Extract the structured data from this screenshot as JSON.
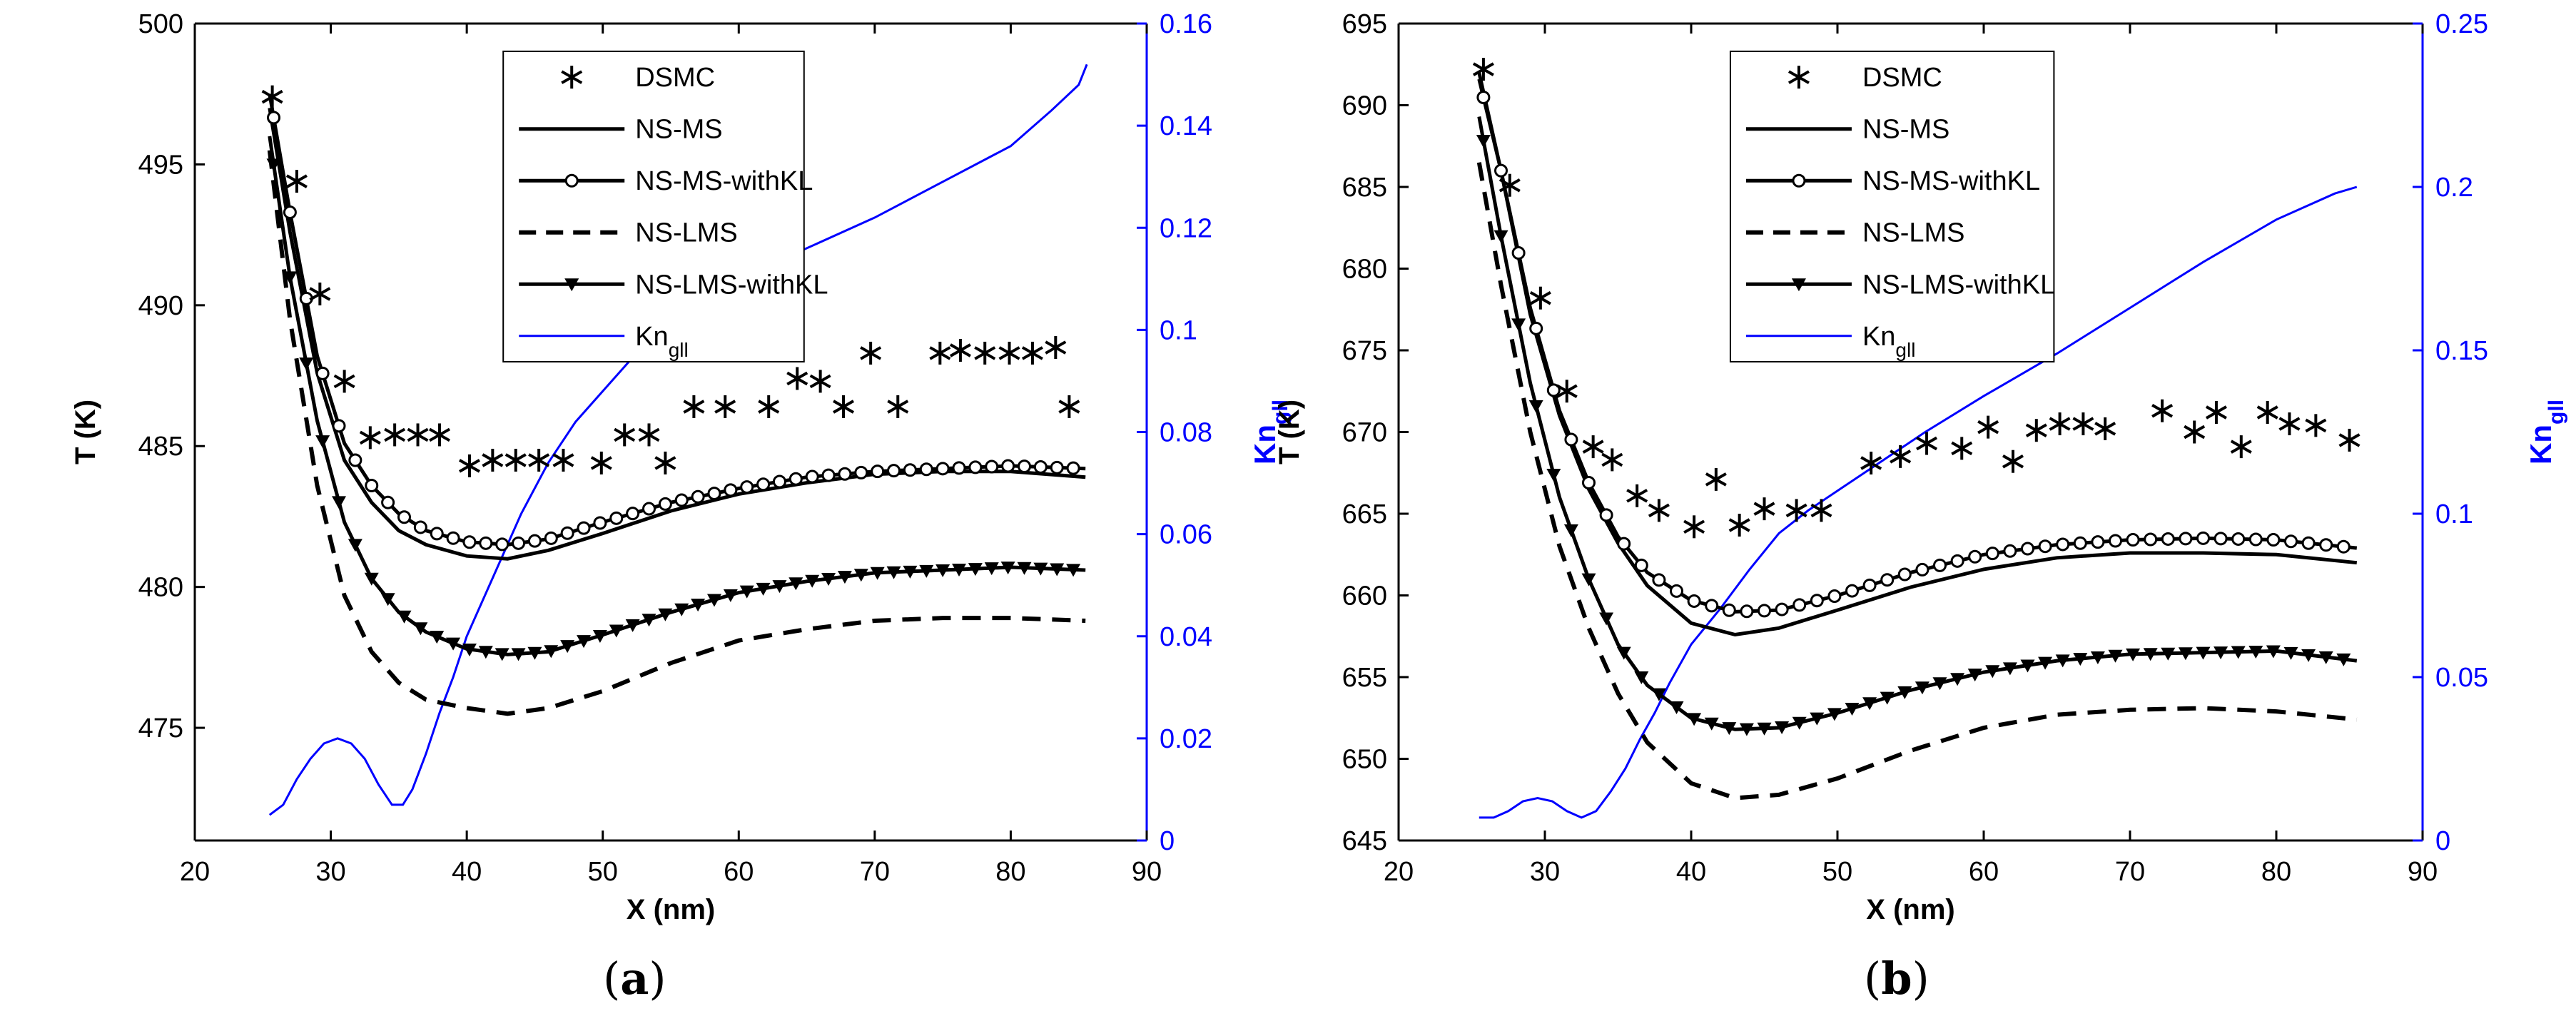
{
  "panels": [
    {
      "label_open": "(",
      "label_letter": "a",
      "label_close": ")"
    },
    {
      "label_open": "(",
      "label_letter": "b",
      "label_close": ")"
    }
  ],
  "colors": {
    "axis": "#000000",
    "secondary": "#0000ff",
    "series": "#000000"
  },
  "chart_data": [
    {
      "type": "line",
      "xlabel": "X (nm)",
      "ylabel": "T (K)",
      "y2label_main": "Kn",
      "y2label_sub": "gll",
      "xlim": [
        20,
        90
      ],
      "ylim": [
        471,
        500
      ],
      "y2lim": [
        0,
        0.16
      ],
      "xticks": [
        20,
        30,
        40,
        50,
        60,
        70,
        80,
        90
      ],
      "yticks": [
        475,
        480,
        485,
        490,
        495,
        500
      ],
      "y2ticks": [
        "0",
        "0.02",
        "0.04",
        "0.06",
        "0.08",
        "0.1",
        "0.12",
        "0.14",
        "0.16"
      ],
      "legend_position": "top-center",
      "legend": [
        {
          "name": "DSMC",
          "style": "asterisk"
        },
        {
          "name": "NS-MS",
          "style": "solid"
        },
        {
          "name": "NS-MS-withKL",
          "style": "solid-circle"
        },
        {
          "name": "NS-LMS",
          "style": "dashed"
        },
        {
          "name": "NS-LMS-withKL",
          "style": "solid-triangle"
        },
        {
          "name_main": "Kn",
          "name_sub": "gll",
          "style": "blue-line"
        }
      ],
      "series": [
        {
          "key": "dsmc",
          "x": [
            25.7,
            27.5,
            29.2,
            31.0,
            32.9,
            34.7,
            36.4,
            38.0,
            40.2,
            41.9,
            43.6,
            45.3,
            47.1,
            49.9,
            51.6,
            53.4,
            54.6,
            56.7,
            59.0,
            62.2,
            64.3,
            66.0,
            67.7,
            69.7,
            71.7,
            74.8,
            76.3,
            78.1,
            79.9,
            81.6,
            83.3,
            84.3
          ],
          "y": [
            497.4,
            494.4,
            490.4,
            487.3,
            485.3,
            485.4,
            485.4,
            485.4,
            484.3,
            484.5,
            484.5,
            484.5,
            484.5,
            484.4,
            485.4,
            485.4,
            484.4,
            486.4,
            486.4,
            486.4,
            487.4,
            487.3,
            486.4,
            488.3,
            486.4,
            488.3,
            488.4,
            488.3,
            488.3,
            488.3,
            488.5,
            486.4
          ]
        },
        {
          "key": "ns_ms",
          "x": [
            25.5,
            27,
            29,
            31,
            33,
            35,
            37,
            40,
            43,
            46,
            50,
            55,
            60,
            65,
            70,
            75,
            80,
            85.5
          ],
          "y": [
            497,
            492.6,
            487.6,
            484.5,
            483.0,
            482.0,
            481.5,
            481.1,
            481.0,
            481.3,
            481.9,
            482.7,
            483.3,
            483.7,
            484.0,
            484.1,
            484.1,
            483.9
          ]
        },
        {
          "key": "ns_ms_kl",
          "x": [
            25.5,
            27,
            29,
            31,
            33,
            35,
            37,
            40,
            43,
            46,
            50,
            55,
            60,
            65,
            70,
            75,
            80,
            85.5
          ],
          "y": [
            497.5,
            493.3,
            488.2,
            485.1,
            483.6,
            482.6,
            482.0,
            481.6,
            481.5,
            481.7,
            482.3,
            483.0,
            483.5,
            483.9,
            484.1,
            484.2,
            484.3,
            484.2
          ]
        },
        {
          "key": "ns_lms",
          "x": [
            25.5,
            27,
            29,
            31,
            33,
            35,
            37,
            40,
            43,
            46,
            50,
            55,
            60,
            65,
            70,
            75,
            80,
            85.5
          ],
          "y": [
            495.5,
            489.5,
            483.6,
            479.7,
            477.7,
            476.6,
            476.0,
            475.7,
            475.5,
            475.7,
            476.3,
            477.3,
            478.1,
            478.5,
            478.8,
            478.9,
            478.9,
            478.8
          ]
        },
        {
          "key": "ns_lms_kl",
          "x": [
            25.5,
            27,
            29,
            31,
            33,
            35,
            37,
            40,
            43,
            46,
            50,
            55,
            60,
            65,
            70,
            75,
            80,
            85.5
          ],
          "y": [
            496,
            491,
            485.9,
            482.3,
            480.3,
            479.1,
            478.4,
            477.8,
            477.6,
            477.7,
            478.3,
            479.1,
            479.8,
            480.2,
            480.5,
            480.6,
            480.7,
            480.6
          ]
        },
        {
          "key": "kn",
          "x": [
            25.5,
            26.5,
            27.5,
            28.5,
            29.5,
            30.5,
            31.5,
            32.5,
            33.5,
            34.5,
            35.3,
            36,
            37,
            38,
            39,
            40,
            42,
            44,
            46,
            48,
            50,
            53,
            56,
            60,
            65,
            70,
            75,
            80,
            83,
            85,
            85.6
          ],
          "y": [
            0.005,
            0.007,
            0.012,
            0.016,
            0.019,
            0.02,
            0.019,
            0.016,
            0.011,
            0.007,
            0.007,
            0.01,
            0.017,
            0.025,
            0.032,
            0.04,
            0.052,
            0.064,
            0.074,
            0.082,
            0.088,
            0.097,
            0.104,
            0.11,
            0.116,
            0.122,
            0.129,
            0.136,
            0.143,
            0.148,
            0.152
          ]
        }
      ]
    },
    {
      "type": "line",
      "xlabel": "X (nm)",
      "ylabel": "T (K)",
      "y2label_main": "Kn",
      "y2label_sub": "gll",
      "xlim": [
        20,
        90
      ],
      "ylim": [
        645,
        695
      ],
      "y2lim": [
        0,
        0.25
      ],
      "xticks": [
        20,
        30,
        40,
        50,
        60,
        70,
        80,
        90
      ],
      "yticks": [
        645,
        650,
        655,
        660,
        665,
        670,
        675,
        680,
        685,
        690,
        695
      ],
      "y2ticks": [
        "0",
        "0.05",
        "0.1",
        "0.15",
        "0.2",
        "0.25"
      ],
      "legend_position": "top-center",
      "legend": [
        {
          "name": "DSMC",
          "style": "asterisk"
        },
        {
          "name": "NS-MS",
          "style": "solid"
        },
        {
          "name": "NS-MS-withKL",
          "style": "solid-circle"
        },
        {
          "name": "NS-LMS",
          "style": "dashed"
        },
        {
          "name": "NS-LMS-withKL",
          "style": "solid-triangle"
        },
        {
          "name_main": "Kn",
          "name_sub": "gll",
          "style": "blue-line"
        }
      ],
      "series": [
        {
          "key": "dsmc",
          "x": [
            25.8,
            27.6,
            29.7,
            31.5,
            33.3,
            34.6,
            36.3,
            37.8,
            40.2,
            41.7,
            43.3,
            45.0,
            47.2,
            48.9,
            52.3,
            54.3,
            56.1,
            58.5,
            60.3,
            62.0,
            63.6,
            65.2,
            66.8,
            68.3,
            72.2,
            74.4,
            75.9,
            77.6,
            79.4,
            80.9,
            82.7,
            85.0
          ],
          "y": [
            692.2,
            685.1,
            678.2,
            672.5,
            669.1,
            668.3,
            666.1,
            665.2,
            664.2,
            667.1,
            664.3,
            665.3,
            665.2,
            665.2,
            668.1,
            668.5,
            669.3,
            669.0,
            670.3,
            668.2,
            670.1,
            670.5,
            670.5,
            670.2,
            671.3,
            670.0,
            671.2,
            669.1,
            671.2,
            670.5,
            670.4,
            669.5
          ]
        },
        {
          "key": "ns_ms",
          "x": [
            25.5,
            27,
            29,
            31,
            33,
            35,
            37,
            40,
            43,
            46,
            50,
            55,
            60,
            65,
            70,
            75,
            80,
            85.5
          ],
          "y": [
            692,
            686,
            677.2,
            671,
            666.5,
            663.2,
            660.6,
            658.3,
            657.6,
            658.0,
            659.1,
            660.5,
            661.6,
            662.3,
            662.6,
            662.6,
            662.5,
            662.0
          ]
        },
        {
          "key": "ns_ms_kl",
          "x": [
            25.5,
            27,
            29,
            31,
            33,
            35,
            37,
            40,
            43,
            46,
            50,
            55,
            60,
            65,
            70,
            75,
            80,
            85.5
          ],
          "y": [
            691.6,
            686,
            677.6,
            671.3,
            666.9,
            663.6,
            661.4,
            659.7,
            659.0,
            659.1,
            660.0,
            661.4,
            662.5,
            663.1,
            663.4,
            663.5,
            663.4,
            662.9
          ]
        },
        {
          "key": "ns_lms",
          "x": [
            25.5,
            27,
            29,
            31,
            33,
            35,
            37,
            40,
            43,
            46,
            50,
            55,
            60,
            65,
            70,
            75,
            80,
            85.5
          ],
          "y": [
            686.5,
            679.0,
            670.0,
            663.0,
            658.0,
            654.0,
            651.0,
            648.5,
            647.6,
            647.8,
            648.8,
            650.5,
            651.9,
            652.7,
            653.0,
            653.1,
            652.9,
            652.4
          ]
        },
        {
          "key": "ns_lms_kl",
          "x": [
            25.5,
            27,
            29,
            31,
            33,
            35,
            37,
            40,
            43,
            46,
            50,
            55,
            60,
            65,
            70,
            75,
            80,
            85.5
          ],
          "y": [
            689.3,
            682.0,
            673.0,
            666.0,
            661.0,
            657.0,
            654.5,
            652.5,
            651.8,
            651.9,
            652.8,
            654.2,
            655.3,
            656.0,
            656.4,
            656.5,
            656.6,
            656.0
          ]
        },
        {
          "key": "kn",
          "x": [
            25.5,
            26.5,
            27.5,
            28.5,
            29.5,
            30.5,
            31.5,
            32.5,
            33.5,
            34.5,
            35.5,
            36.5,
            37.5,
            38.5,
            40,
            42,
            44,
            46,
            48,
            50,
            53,
            56,
            60,
            65,
            70,
            75,
            80,
            84,
            85.5
          ],
          "y": [
            0.007,
            0.007,
            0.009,
            0.012,
            0.013,
            0.012,
            0.009,
            0.007,
            0.009,
            0.015,
            0.022,
            0.031,
            0.039,
            0.048,
            0.06,
            0.071,
            0.083,
            0.094,
            0.101,
            0.107,
            0.116,
            0.125,
            0.136,
            0.149,
            0.163,
            0.177,
            0.19,
            0.198,
            0.2
          ]
        }
      ]
    }
  ]
}
